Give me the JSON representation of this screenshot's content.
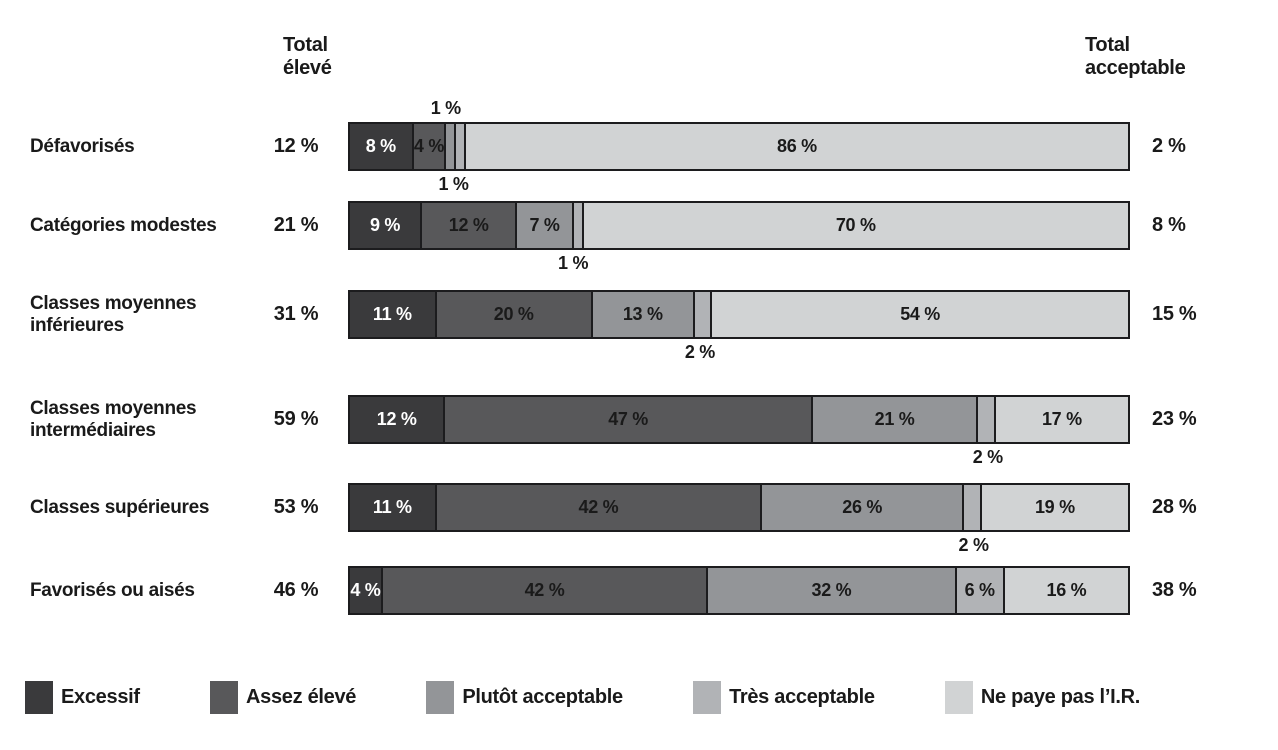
{
  "headers": {
    "left": "Total\nélevé",
    "right": "Total\nacceptable"
  },
  "colors": {
    "excessif": "#3a3a3c",
    "assez_eleve": "#58585a",
    "plutot_acceptable": "#939598",
    "tres_acceptable": "#b1b3b6",
    "ne_paye_pas": "#d1d3d4",
    "border": "#1c1c1e",
    "text": "#1a1a1a",
    "inverse_text": "#ffffff"
  },
  "legend": [
    {
      "label": "Excessif",
      "color_key": "excessif"
    },
    {
      "label": "Assez élevé",
      "color_key": "assez_eleve"
    },
    {
      "label": "Plutôt acceptable",
      "color_key": "plutot_acceptable"
    },
    {
      "label": "Très acceptable",
      "color_key": "tres_acceptable"
    },
    {
      "label": "Ne paye pas l’I.R.",
      "color_key": "ne_paye_pas"
    }
  ],
  "rows": [
    {
      "label": "Défavorisés",
      "total_left": "12 %",
      "total_right": "2 %",
      "segments": [
        {
          "key": "excessif",
          "value": 8,
          "label": "8 %",
          "label_pos": "inside",
          "text_color": "inverse"
        },
        {
          "key": "assez_eleve",
          "value": 4,
          "label": "4 %",
          "label_pos": "inside"
        },
        {
          "key": "plutot_acceptable",
          "value": 1,
          "label": "1 %",
          "label_pos": "above"
        },
        {
          "key": "tres_acceptable",
          "value": 1,
          "label": "1 %",
          "label_pos": "below"
        },
        {
          "key": "ne_paye_pas",
          "value": 86,
          "label": "86 %",
          "label_pos": "inside"
        }
      ]
    },
    {
      "label": "Catégories modestes",
      "total_left": "21 %",
      "total_right": "8 %",
      "segments": [
        {
          "key": "excessif",
          "value": 9,
          "label": "9 %",
          "label_pos": "inside",
          "text_color": "inverse"
        },
        {
          "key": "assez_eleve",
          "value": 12,
          "label": "12 %",
          "label_pos": "inside"
        },
        {
          "key": "plutot_acceptable",
          "value": 7,
          "label": "7 %",
          "label_pos": "inside"
        },
        {
          "key": "tres_acceptable",
          "value": 1,
          "label": "1 %",
          "label_pos": "below"
        },
        {
          "key": "ne_paye_pas",
          "value": 70,
          "label": "70 %",
          "label_pos": "inside"
        }
      ]
    },
    {
      "label": "Classes moyennes inférieures",
      "total_left": "31 %",
      "total_right": "15 %",
      "segments": [
        {
          "key": "excessif",
          "value": 11,
          "label": "11 %",
          "label_pos": "inside",
          "text_color": "inverse"
        },
        {
          "key": "assez_eleve",
          "value": 20,
          "label": "20 %",
          "label_pos": "inside"
        },
        {
          "key": "plutot_acceptable",
          "value": 13,
          "label": "13 %",
          "label_pos": "inside"
        },
        {
          "key": "tres_acceptable",
          "value": 2,
          "label": "2 %",
          "label_pos": "below"
        },
        {
          "key": "ne_paye_pas",
          "value": 54,
          "label": "54 %",
          "label_pos": "inside"
        }
      ]
    },
    {
      "label": "Classes moyennes intermédiaires",
      "total_left": "59 %",
      "total_right": "23 %",
      "segments": [
        {
          "key": "excessif",
          "value": 12,
          "label": "12 %",
          "label_pos": "inside",
          "text_color": "inverse"
        },
        {
          "key": "assez_eleve",
          "value": 47,
          "label": "47 %",
          "label_pos": "inside"
        },
        {
          "key": "plutot_acceptable",
          "value": 21,
          "label": "21 %",
          "label_pos": "inside"
        },
        {
          "key": "tres_acceptable",
          "value": 2,
          "label": "2 %",
          "label_pos": "below"
        },
        {
          "key": "ne_paye_pas",
          "value": 17,
          "label": "17 %",
          "label_pos": "inside"
        }
      ]
    },
    {
      "label": "Classes supérieures",
      "total_left": "53 %",
      "total_right": "28 %",
      "segments": [
        {
          "key": "excessif",
          "value": 11,
          "label": "11 %",
          "label_pos": "inside",
          "text_color": "inverse"
        },
        {
          "key": "assez_eleve",
          "value": 42,
          "label": "42 %",
          "label_pos": "inside"
        },
        {
          "key": "plutot_acceptable",
          "value": 26,
          "label": "26 %",
          "label_pos": "inside"
        },
        {
          "key": "tres_acceptable",
          "value": 2,
          "label": "2 %",
          "label_pos": "below"
        },
        {
          "key": "ne_paye_pas",
          "value": 19,
          "label": "19 %",
          "label_pos": "inside"
        }
      ]
    },
    {
      "label": "Favorisés ou aisés",
      "total_left": "46 %",
      "total_right": "38 %",
      "segments": [
        {
          "key": "excessif",
          "value": 4,
          "label": "4 %",
          "label_pos": "inside",
          "text_color": "inverse"
        },
        {
          "key": "assez_eleve",
          "value": 42,
          "label": "42 %",
          "label_pos": "inside"
        },
        {
          "key": "plutot_acceptable",
          "value": 32,
          "label": "32 %",
          "label_pos": "inside"
        },
        {
          "key": "tres_acceptable",
          "value": 6,
          "label": "6 %",
          "label_pos": "inside"
        },
        {
          "key": "ne_paye_pas",
          "value": 16,
          "label": "16 %",
          "label_pos": "inside"
        }
      ]
    }
  ],
  "chart_data": {
    "type": "bar",
    "orientation": "horizontal-stacked",
    "unit": "%",
    "xlim": [
      0,
      100
    ],
    "legend_position": "bottom",
    "categories": [
      "Défavorisés",
      "Catégories modestes",
      "Classes moyennes inférieures",
      "Classes moyennes intermédiaires",
      "Classes supérieures",
      "Favorisés ou aisés"
    ],
    "series": [
      {
        "name": "Excessif",
        "values": [
          8,
          9,
          11,
          12,
          11,
          4
        ]
      },
      {
        "name": "Assez élevé",
        "values": [
          4,
          12,
          20,
          47,
          42,
          42
        ]
      },
      {
        "name": "Plutôt acceptable",
        "values": [
          1,
          7,
          13,
          21,
          26,
          32
        ]
      },
      {
        "name": "Très acceptable",
        "values": [
          1,
          1,
          2,
          2,
          2,
          6
        ]
      },
      {
        "name": "Ne paye pas l’I.R.",
        "values": [
          86,
          70,
          54,
          17,
          19,
          16
        ]
      }
    ],
    "totals": {
      "total_eleve_label": "Total élevé",
      "total_eleve": [
        12,
        21,
        31,
        59,
        53,
        46
      ],
      "total_acceptable_label": "Total acceptable",
      "total_acceptable": [
        2,
        8,
        15,
        23,
        28,
        38
      ]
    }
  }
}
